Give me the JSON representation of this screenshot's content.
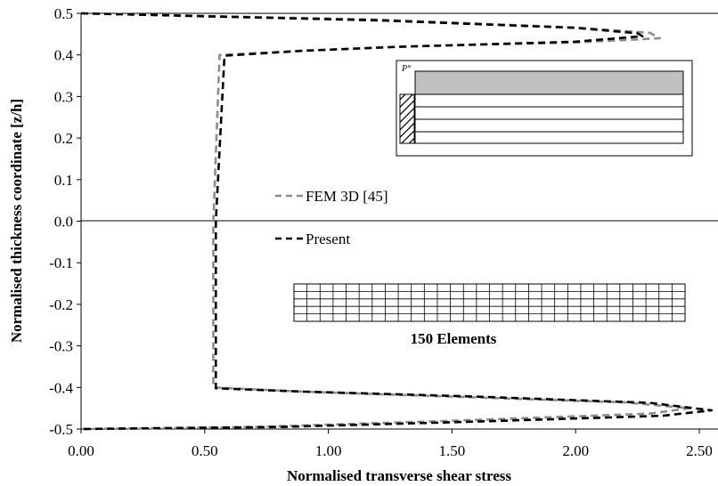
{
  "chart_data": {
    "type": "line",
    "xlabel": "Normalised transverse shear stress",
    "ylabel": "Normalised thickness coordinate [z/h]",
    "xlim": [
      0,
      2.5
    ],
    "ylim": [
      -0.5,
      0.5
    ],
    "x_ticks": [
      "0.00",
      "0.50",
      "1.00",
      "1.50",
      "2.00",
      "2.50"
    ],
    "y_ticks": [
      "0.5",
      "0.4",
      "0.3",
      "0.2",
      "0.1",
      "0.0",
      "-0.1",
      "-0.2",
      "-0.3",
      "-0.4",
      "-0.5"
    ],
    "grid": false,
    "legend_position": "center",
    "series": [
      {
        "name": "FEM 3D [45]",
        "color": "#8c8c8c",
        "dash": "dashed",
        "points": [
          [
            0.0,
            0.5
          ],
          [
            1.2,
            0.485
          ],
          [
            2.0,
            0.466
          ],
          [
            2.3,
            0.453
          ],
          [
            2.34,
            0.44
          ],
          [
            2.0,
            0.43
          ],
          [
            1.3,
            0.42
          ],
          [
            0.9,
            0.41
          ],
          [
            0.56,
            0.4
          ],
          [
            0.535,
            0.0
          ],
          [
            0.535,
            -0.4
          ],
          [
            0.9,
            -0.41
          ],
          [
            1.5,
            -0.422
          ],
          [
            2.2,
            -0.436
          ],
          [
            2.46,
            -0.45
          ],
          [
            2.3,
            -0.463
          ],
          [
            1.5,
            -0.48
          ],
          [
            0.7,
            -0.495
          ],
          [
            0.0,
            -0.5
          ]
        ]
      },
      {
        "name": "Present",
        "color": "#000000",
        "dash": "dashed",
        "points": [
          [
            0.0,
            0.5
          ],
          [
            1.2,
            0.483
          ],
          [
            2.0,
            0.465
          ],
          [
            2.25,
            0.452
          ],
          [
            2.27,
            0.445
          ],
          [
            2.0,
            0.432
          ],
          [
            1.3,
            0.42
          ],
          [
            0.9,
            0.41
          ],
          [
            0.58,
            0.398
          ],
          [
            0.545,
            0.0
          ],
          [
            0.545,
            -0.402
          ],
          [
            0.9,
            -0.41
          ],
          [
            1.6,
            -0.422
          ],
          [
            2.3,
            -0.437
          ],
          [
            2.55,
            -0.455
          ],
          [
            2.35,
            -0.468
          ],
          [
            1.6,
            -0.482
          ],
          [
            0.8,
            -0.495
          ],
          [
            0.0,
            -0.5
          ]
        ]
      }
    ],
    "annotations": {
      "inset_label": "P°",
      "mesh_caption": "150 Elements"
    }
  },
  "colors": {
    "inset_fill": "#c0c0c0"
  }
}
